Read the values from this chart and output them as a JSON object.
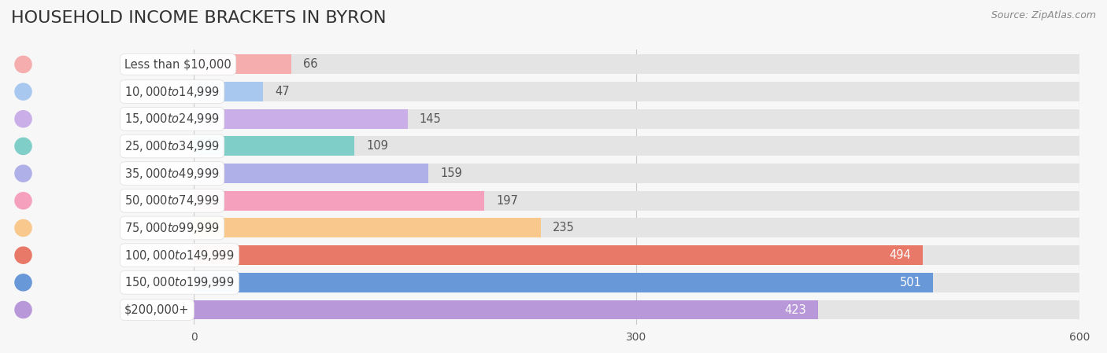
{
  "title": "HOUSEHOLD INCOME BRACKETS IN BYRON",
  "source": "Source: ZipAtlas.com",
  "categories": [
    "Less than $10,000",
    "$10,000 to $14,999",
    "$15,000 to $24,999",
    "$25,000 to $34,999",
    "$35,000 to $49,999",
    "$50,000 to $74,999",
    "$75,000 to $99,999",
    "$100,000 to $149,999",
    "$150,000 to $199,999",
    "$200,000+"
  ],
  "values": [
    66,
    47,
    145,
    109,
    159,
    197,
    235,
    494,
    501,
    423
  ],
  "bar_colors": [
    "#f5adad",
    "#a8c8f0",
    "#caaee8",
    "#80cec8",
    "#b0b0e8",
    "#f5a0bc",
    "#f8c88c",
    "#e87868",
    "#6898d8",
    "#b898d8"
  ],
  "xlim": [
    0,
    600
  ],
  "xticks": [
    0,
    300,
    600
  ],
  "background_color": "#f7f7f7",
  "bar_bg_color": "#e4e4e4",
  "title_fontsize": 16,
  "label_fontsize": 10.5,
  "value_fontsize": 10.5
}
